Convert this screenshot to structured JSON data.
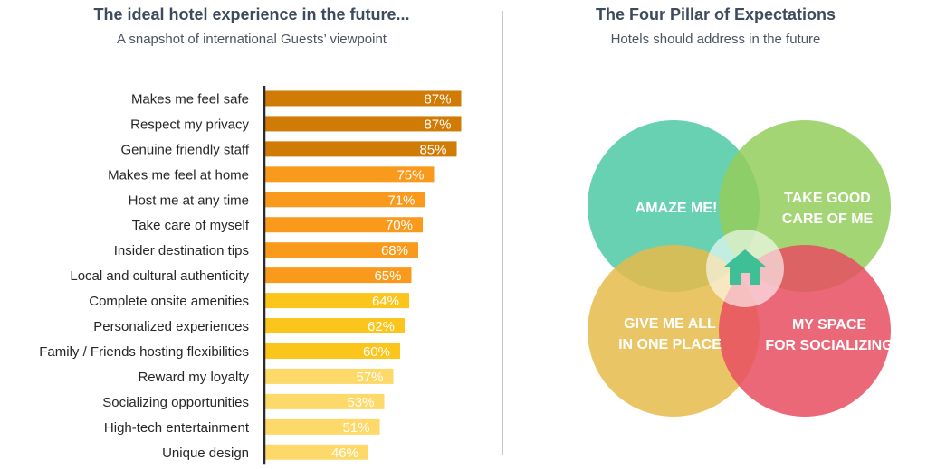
{
  "left_panel": {
    "title": "The ideal hotel experience in the future...",
    "subtitle": "A snapshot of international Guests’ viewpoint"
  },
  "right_panel": {
    "title": "The Four Pillar of Expectations",
    "subtitle": "Hotels should address in the future",
    "pillars": [
      {
        "lines": [
          "AMAZE ME!"
        ],
        "color": "#4ec9a5"
      },
      {
        "lines": [
          "TAKE GOOD",
          "CARE OF ME"
        ],
        "color": "#94ce5c"
      },
      {
        "lines": [
          "GIVE ME ALL",
          "IN ONE PLACE"
        ],
        "color": "#e6bb4a"
      },
      {
        "lines": [
          "MY SPACE",
          "FOR SOCIALIZING"
        ],
        "color": "#e74e62"
      }
    ],
    "center_icon": "home-icon",
    "center_icon_color": "#3fbf96"
  },
  "chart_data": {
    "type": "bar",
    "orientation": "horizontal",
    "title": "The ideal hotel experience in the future...",
    "subtitle": "A snapshot of international Guests’ viewpoint",
    "categories": [
      "Makes me feel safe",
      "Respect my privacy",
      "Genuine friendly staff",
      "Makes me feel at home",
      "Host me at any time",
      "Take care of myself",
      "Insider destination tips",
      "Local and cultural authenticity",
      "Complete onsite amenities",
      "Personalized experiences",
      "Family / Friends hosting flexibilities",
      "Reward my loyalty",
      "Socializing opportunities",
      "High-tech entertainment",
      "Unique design"
    ],
    "values": [
      87,
      87,
      85,
      75,
      71,
      70,
      68,
      65,
      64,
      62,
      60,
      57,
      53,
      51,
      46
    ],
    "labels": [
      "87%",
      "87%",
      "85%",
      "75%",
      "71%",
      "70%",
      "68%",
      "65%",
      "64%",
      "62%",
      "60%",
      "57%",
      "53%",
      "51%",
      "46%"
    ],
    "bar_colors": [
      "#d07b06",
      "#d07b06",
      "#d07b06",
      "#fa9a1c",
      "#fa9a1c",
      "#fa9a1c",
      "#fa9a1c",
      "#fa9a1c",
      "#fbc51b",
      "#fbc51b",
      "#fbc51b",
      "#fcd969",
      "#fcd969",
      "#fcd969",
      "#fcd969"
    ],
    "axis_color": "#2b2b2b",
    "label_color": "#ffffff",
    "category_color": "#262626",
    "xlim": [
      0,
      100
    ],
    "grid": false,
    "legend": "none"
  }
}
